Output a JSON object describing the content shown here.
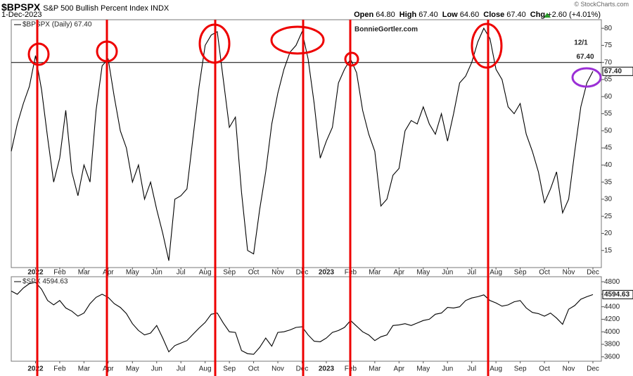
{
  "header": {
    "symbol": "$BPSPX",
    "description": "S&P 500 Bullish Percent Index",
    "exchange": "INDX",
    "date": "1-Dec-2023",
    "copyright": "© StockCharts.com",
    "quote": [
      {
        "label": "Open",
        "value": "64.80"
      },
      {
        "label": "High",
        "value": "67.40"
      },
      {
        "label": "Low",
        "value": "64.60"
      },
      {
        "label": "Close",
        "value": "67.40"
      },
      {
        "label": "Chg",
        "value": "+2.60 (+4.01%)"
      }
    ]
  },
  "chart_data": [
    {
      "type": "line",
      "annotations": [
        "BonnieGortler.com",
        "12/1",
        "67.40"
      ],
      "hline": 70,
      "categories": [
        null,
        null,
        null,
        null,
        "2022",
        null,
        null,
        null,
        "Feb",
        null,
        null,
        null,
        "Mar",
        null,
        null,
        null,
        "Apr",
        null,
        null,
        null,
        "May",
        null,
        null,
        null,
        "Jun",
        null,
        null,
        null,
        "Jul",
        null,
        null,
        null,
        "Aug",
        null,
        null,
        null,
        "Sep",
        null,
        null,
        null,
        "Oct",
        null,
        null,
        null,
        "Nov",
        null,
        null,
        null,
        "Dec",
        null,
        null,
        null,
        "2023",
        null,
        null,
        null,
        "Feb",
        null,
        null,
        null,
        "Mar",
        null,
        null,
        null,
        "Apr",
        null,
        null,
        null,
        "May",
        null,
        null,
        null,
        "Jun",
        null,
        null,
        null,
        "Jul",
        null,
        null,
        null,
        "Aug",
        null,
        null,
        null,
        "Sep",
        null,
        null,
        null,
        "Oct",
        null,
        null,
        null,
        "Nov",
        null,
        null,
        null,
        "Dec"
      ],
      "series": [
        {
          "name": "$BPSPX (Daily) 67.40",
          "color": "#000000",
          "last_value_label": "67.40",
          "values": [
            44,
            52,
            58,
            63,
            72,
            62,
            48,
            35,
            42,
            56,
            38,
            31,
            40,
            35,
            56,
            69,
            71,
            60,
            50,
            45,
            35,
            40,
            30,
            35,
            27,
            20,
            12,
            30,
            31,
            33,
            48,
            63,
            75,
            78,
            79,
            65,
            51,
            54,
            32,
            15,
            14,
            27,
            38,
            52,
            61,
            68,
            73,
            75,
            79,
            71,
            58,
            42,
            47,
            51,
            64,
            68,
            71,
            67,
            56,
            49,
            44,
            28,
            30,
            37,
            39,
            50,
            53,
            52,
            57,
            52,
            49,
            55,
            47,
            55,
            64,
            66,
            70,
            76,
            80,
            77,
            68,
            65,
            57,
            55,
            58,
            49,
            44,
            38,
            29,
            33,
            38,
            26,
            30,
            44,
            57,
            64,
            67.4
          ]
        }
      ],
      "ylim": [
        10,
        82.5
      ],
      "yticks": [
        15,
        20,
        25,
        30,
        35,
        40,
        45,
        50,
        55,
        60,
        65,
        70,
        75,
        80
      ],
      "grid": false
    },
    {
      "type": "line",
      "categories": [
        null,
        null,
        null,
        null,
        "2022",
        null,
        null,
        null,
        "Feb",
        null,
        null,
        null,
        "Mar",
        null,
        null,
        null,
        "Apr",
        null,
        null,
        null,
        "May",
        null,
        null,
        null,
        "Jun",
        null,
        null,
        null,
        "Jul",
        null,
        null,
        null,
        "Aug",
        null,
        null,
        null,
        "Sep",
        null,
        null,
        null,
        "Oct",
        null,
        null,
        null,
        "Nov",
        null,
        null,
        null,
        "Dec",
        null,
        null,
        null,
        "2023",
        null,
        null,
        null,
        "Feb",
        null,
        null,
        null,
        "Mar",
        null,
        null,
        null,
        "Apr",
        null,
        null,
        null,
        "May",
        null,
        null,
        null,
        "Jun",
        null,
        null,
        null,
        "Jul",
        null,
        null,
        null,
        "Aug",
        null,
        null,
        null,
        "Sep",
        null,
        null,
        null,
        "Oct",
        null,
        null,
        null,
        "Nov",
        null,
        null,
        null,
        "Dec"
      ],
      "series": [
        {
          "name": "$SPX 4594.63",
          "color": "#000000",
          "last_value_label": "4594.63",
          "values": [
            4650,
            4600,
            4700,
            4770,
            4790,
            4680,
            4500,
            4430,
            4500,
            4380,
            4330,
            4250,
            4300,
            4450,
            4550,
            4600,
            4550,
            4450,
            4390,
            4290,
            4130,
            4020,
            3950,
            3980,
            4100,
            3900,
            3680,
            3780,
            3820,
            3860,
            3960,
            4060,
            4150,
            4280,
            4300,
            4140,
            4000,
            3990,
            3700,
            3650,
            3640,
            3750,
            3900,
            3770,
            3990,
            4000,
            4030,
            4070,
            4080,
            3950,
            3850,
            3840,
            3900,
            3990,
            4020,
            4070,
            4180,
            4090,
            4000,
            3950,
            3860,
            3920,
            3950,
            4100,
            4110,
            4130,
            4100,
            4140,
            4180,
            4200,
            4280,
            4300,
            4390,
            4380,
            4400,
            4500,
            4540,
            4560,
            4590,
            4500,
            4460,
            4410,
            4430,
            4480,
            4500,
            4380,
            4310,
            4290,
            4250,
            4300,
            4220,
            4120,
            4360,
            4420,
            4520,
            4560,
            4594.63
          ]
        }
      ],
      "ylim": [
        3530,
        4880
      ],
      "yticks": [
        3600,
        3800,
        4000,
        4200,
        4400,
        4600,
        4800
      ],
      "grid": false
    }
  ]
}
